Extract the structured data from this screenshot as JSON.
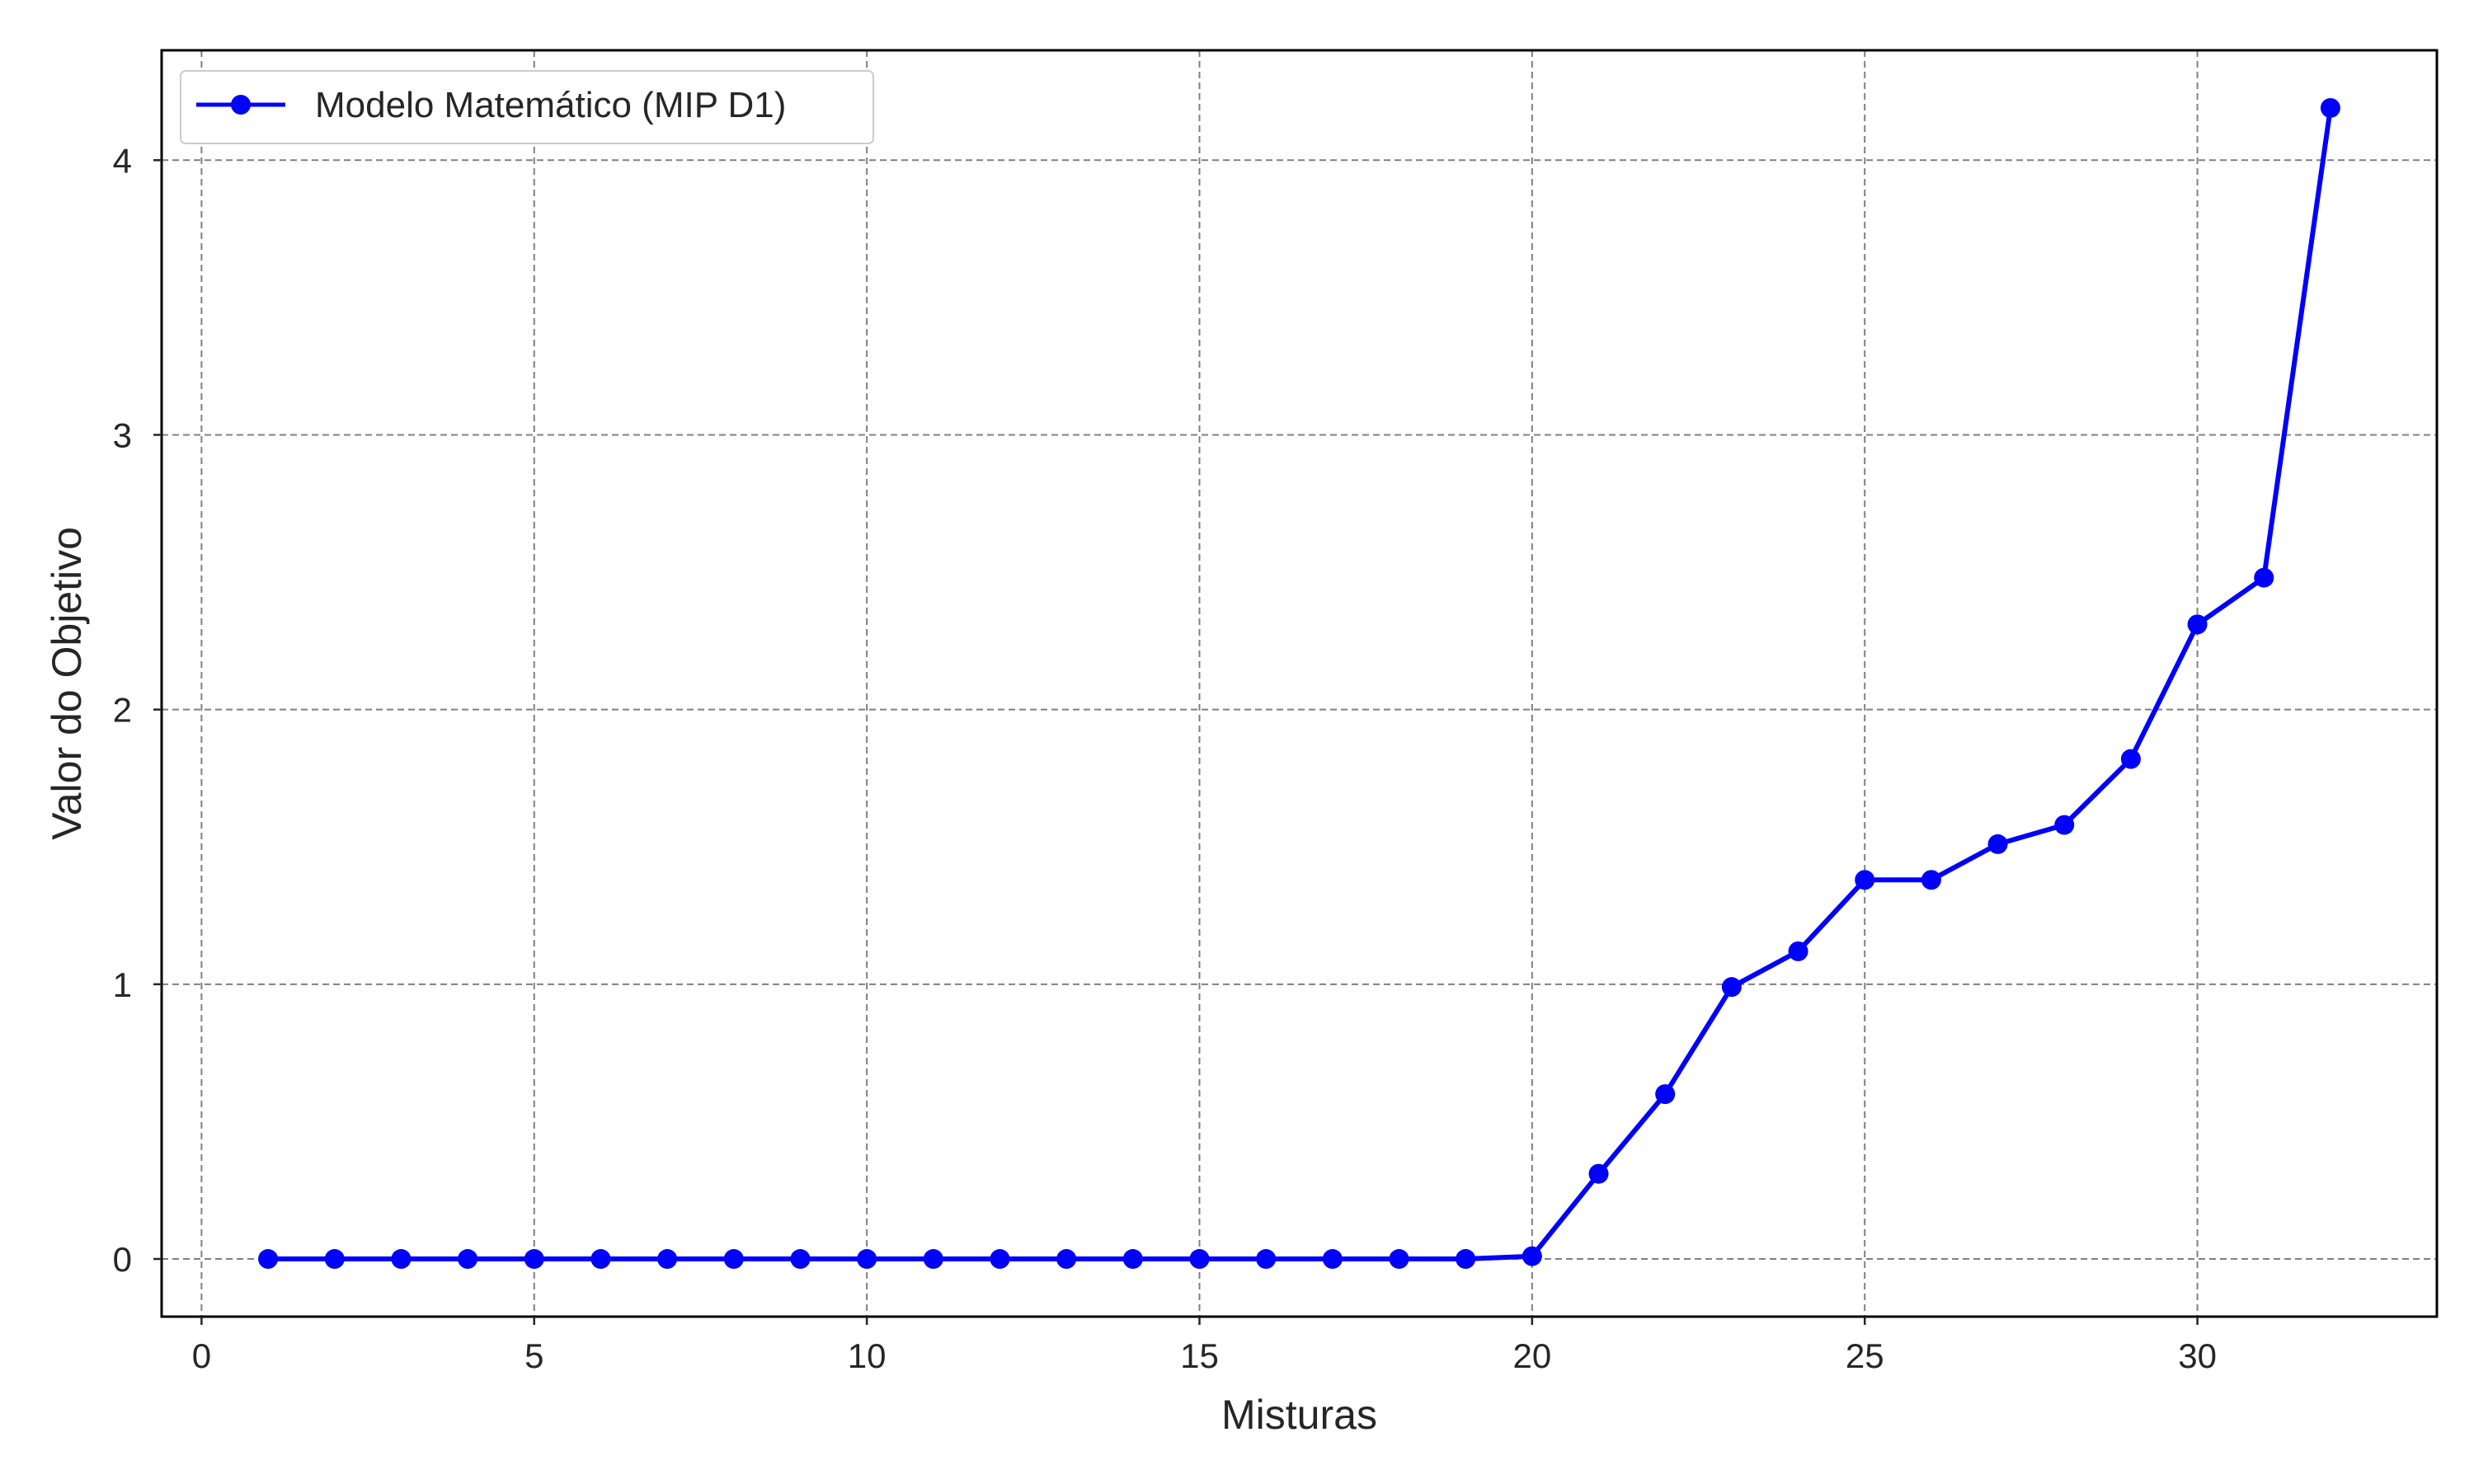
{
  "chart_data": {
    "type": "line",
    "title": "",
    "xlabel": "Misturas",
    "ylabel": "Valor do Objetivo",
    "xlim": [
      -0.6,
      33.6
    ],
    "ylim": [
      -0.21,
      4.4
    ],
    "xticks": [
      0,
      5,
      10,
      15,
      20,
      25,
      30
    ],
    "yticks": [
      0,
      1,
      2,
      3,
      4
    ],
    "grid": true,
    "legend_position": "top-left",
    "series": [
      {
        "name": "Modelo Matemático (MIP D1)",
        "color": "#0000ff",
        "marker": "circle",
        "x": [
          1,
          2,
          3,
          4,
          5,
          6,
          7,
          8,
          9,
          10,
          11,
          12,
          13,
          14,
          15,
          16,
          17,
          18,
          19,
          20,
          21,
          22,
          23,
          24,
          25,
          26,
          27,
          28,
          29,
          30,
          31,
          32
        ],
        "y": [
          0,
          0,
          0,
          0,
          0,
          0,
          0,
          0,
          0,
          0,
          0,
          0,
          0,
          0,
          0,
          0,
          0,
          0,
          0,
          0.01,
          0.31,
          0.6,
          0.99,
          1.12,
          1.38,
          1.38,
          1.51,
          1.58,
          1.82,
          2.31,
          2.48,
          4.19
        ]
      }
    ]
  }
}
